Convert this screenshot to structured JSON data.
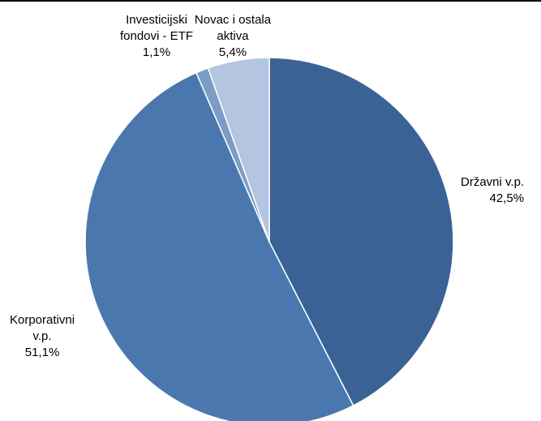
{
  "chart_data": {
    "type": "pie",
    "title": "",
    "slices": [
      {
        "name": "Državni v.p.",
        "value": 42.5,
        "label_value": "42,5%",
        "label_lines": [
          "Državni v.p."
        ],
        "color": "#3b6295"
      },
      {
        "name": "Korporativni v.p.",
        "value": 51.1,
        "label_value": "51,1%",
        "label_lines": [
          "Korporativni",
          "v.p."
        ],
        "color": "#4a78ae"
      },
      {
        "name": "Investicijski fondovi - ETF",
        "value": 1.1,
        "label_value": "1,1%",
        "label_lines": [
          "Investicijski",
          "fondovi - ETF"
        ],
        "color": "#7c9cc6"
      },
      {
        "name": "Novac i ostala aktiva",
        "value": 5.4,
        "label_value": "5,4%",
        "label_lines": [
          "Novac i ostala",
          "aktiva"
        ],
        "color": "#b3c5e0"
      }
    ],
    "start_angle_deg": 0,
    "direction": "clockwise",
    "legend": "none",
    "data_labels": "outside"
  }
}
